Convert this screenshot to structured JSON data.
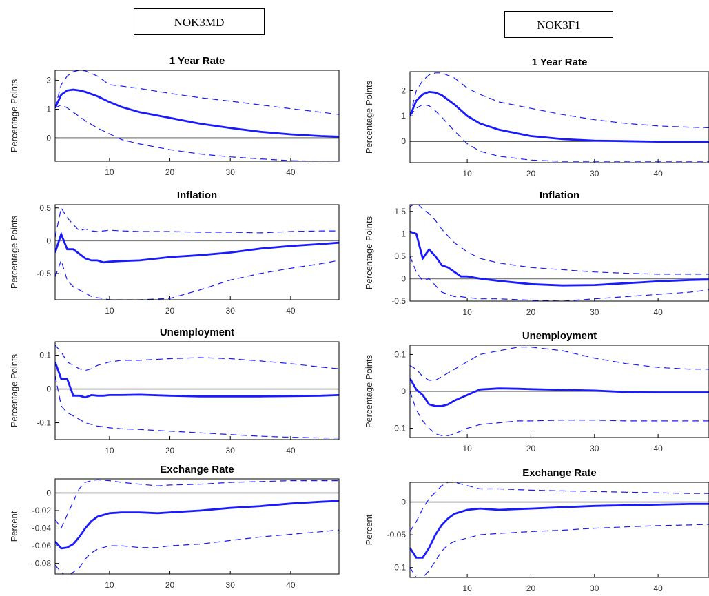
{
  "columns": {
    "left": {
      "label": "NOK3MD"
    },
    "right": {
      "label": "NOK3F1"
    }
  },
  "colors": {
    "response": "#1a1aff",
    "band": "#1a1aff",
    "zero_line": "#808080",
    "axis": "#000000"
  },
  "chart_data": [
    {
      "type": "line",
      "column": "NOK3MD",
      "title": "1 Year Rate",
      "ylabel": "Percentage Points",
      "xlabel": "",
      "xlim": [
        1,
        48
      ],
      "ylim": [
        -0.8,
        2.35
      ],
      "xticks": [
        10,
        20,
        30,
        40
      ],
      "yticks": [
        0,
        1,
        2
      ],
      "x": [
        1,
        2,
        3,
        4,
        5,
        6,
        8,
        10,
        12,
        15,
        20,
        25,
        30,
        35,
        40,
        45,
        48
      ],
      "series": [
        {
          "name": "",
          "role": "response",
          "values": [
            1.05,
            1.5,
            1.65,
            1.68,
            1.65,
            1.6,
            1.45,
            1.25,
            1.08,
            0.9,
            0.7,
            0.5,
            0.35,
            0.22,
            0.13,
            0.07,
            0.05
          ]
        },
        {
          "name": "",
          "role": "upper",
          "values": [
            1.05,
            1.85,
            2.15,
            2.3,
            2.35,
            2.33,
            2.15,
            1.85,
            1.8,
            1.72,
            1.55,
            1.4,
            1.28,
            1.15,
            1.02,
            0.9,
            0.82
          ]
        },
        {
          "name": "",
          "role": "lower",
          "values": [
            1.05,
            1.15,
            1.05,
            0.9,
            0.75,
            0.6,
            0.35,
            0.15,
            -0.05,
            -0.2,
            -0.4,
            -0.55,
            -0.65,
            -0.72,
            -0.78,
            -0.8,
            -0.8
          ]
        }
      ]
    },
    {
      "type": "line",
      "column": "NOK3MD",
      "title": "Inflation",
      "ylabel": "Percentage Points",
      "xlabel": "",
      "xlim": [
        1,
        48
      ],
      "ylim": [
        -0.9,
        0.55
      ],
      "xticks": [
        10,
        20,
        30,
        40
      ],
      "yticks": [
        -0.5,
        0,
        0.5
      ],
      "x": [
        1,
        2,
        3,
        4,
        5,
        6,
        7,
        8,
        9,
        10,
        12,
        15,
        20,
        25,
        30,
        35,
        40,
        45,
        48
      ],
      "series": [
        {
          "name": "",
          "role": "response",
          "values": [
            -0.18,
            0.1,
            -0.13,
            -0.13,
            -0.2,
            -0.27,
            -0.3,
            -0.3,
            -0.33,
            -0.32,
            -0.31,
            -0.3,
            -0.25,
            -0.22,
            -0.18,
            -0.12,
            -0.08,
            -0.05,
            -0.03
          ]
        },
        {
          "name": "",
          "role": "upper",
          "values": [
            0.05,
            0.5,
            0.35,
            0.25,
            0.15,
            0.18,
            0.15,
            0.14,
            0.15,
            0.16,
            0.15,
            0.14,
            0.14,
            0.13,
            0.13,
            0.12,
            0.14,
            0.15,
            0.15
          ]
        },
        {
          "name": "",
          "role": "lower",
          "values": [
            -0.55,
            -0.3,
            -0.6,
            -0.7,
            -0.75,
            -0.8,
            -0.85,
            -0.87,
            -0.88,
            -0.9,
            -0.9,
            -0.9,
            -0.88,
            -0.75,
            -0.6,
            -0.5,
            -0.42,
            -0.35,
            -0.3
          ]
        }
      ]
    },
    {
      "type": "line",
      "column": "NOK3MD",
      "title": "Unemployment",
      "ylabel": "Percentage Points",
      "xlabel": "",
      "xlim": [
        1,
        48
      ],
      "ylim": [
        -0.15,
        0.14
      ],
      "xticks": [
        10,
        20,
        30,
        40
      ],
      "yticks": [
        -0.1,
        0,
        0.1
      ],
      "x": [
        1,
        2,
        3,
        4,
        5,
        6,
        7,
        8,
        9,
        10,
        12,
        15,
        20,
        25,
        30,
        35,
        40,
        45,
        48
      ],
      "series": [
        {
          "name": "",
          "role": "response",
          "values": [
            0.08,
            0.03,
            0.03,
            -0.02,
            -0.02,
            -0.025,
            -0.018,
            -0.02,
            -0.02,
            -0.018,
            -0.018,
            -0.017,
            -0.02,
            -0.022,
            -0.022,
            -0.022,
            -0.021,
            -0.02,
            -0.018
          ]
        },
        {
          "name": "",
          "role": "upper",
          "values": [
            0.13,
            0.11,
            0.08,
            0.07,
            0.06,
            0.055,
            0.06,
            0.07,
            0.075,
            0.08,
            0.085,
            0.085,
            0.09,
            0.093,
            0.09,
            0.083,
            0.075,
            0.065,
            0.06
          ]
        },
        {
          "name": "",
          "role": "lower",
          "values": [
            0.04,
            -0.05,
            -0.07,
            -0.08,
            -0.09,
            -0.1,
            -0.105,
            -0.11,
            -0.112,
            -0.115,
            -0.118,
            -0.12,
            -0.125,
            -0.13,
            -0.135,
            -0.14,
            -0.143,
            -0.145,
            -0.145
          ]
        }
      ]
    },
    {
      "type": "line",
      "column": "NOK3MD",
      "title": "Exchange Rate",
      "ylabel": "Percent",
      "xlabel": "",
      "xlim": [
        1,
        48
      ],
      "ylim": [
        -0.092,
        0.016
      ],
      "xticks": [
        10,
        20,
        30,
        40
      ],
      "yticks": [
        -0.08,
        -0.06,
        -0.04,
        -0.02,
        0
      ],
      "x": [
        1,
        2,
        3,
        4,
        5,
        6,
        7,
        8,
        10,
        12,
        15,
        18,
        20,
        25,
        30,
        35,
        40,
        45,
        48
      ],
      "series": [
        {
          "name": "",
          "role": "response",
          "values": [
            -0.055,
            -0.063,
            -0.062,
            -0.058,
            -0.05,
            -0.04,
            -0.032,
            -0.027,
            -0.023,
            -0.022,
            -0.022,
            -0.023,
            -0.022,
            -0.02,
            -0.017,
            -0.015,
            -0.012,
            -0.01,
            -0.009
          ]
        },
        {
          "name": "",
          "role": "upper",
          "values": [
            -0.03,
            -0.04,
            -0.025,
            -0.01,
            0.005,
            0.012,
            0.014,
            0.015,
            0.014,
            0.012,
            0.01,
            0.008,
            0.009,
            0.01,
            0.012,
            0.013,
            0.014,
            0.014,
            0.014
          ]
        },
        {
          "name": "",
          "role": "lower",
          "values": [
            -0.082,
            -0.09,
            -0.095,
            -0.09,
            -0.085,
            -0.075,
            -0.068,
            -0.064,
            -0.06,
            -0.06,
            -0.062,
            -0.062,
            -0.06,
            -0.058,
            -0.054,
            -0.05,
            -0.047,
            -0.044,
            -0.042
          ]
        }
      ]
    },
    {
      "type": "line",
      "column": "NOK3F1",
      "title": "1 Year Rate",
      "ylabel": "Percentage Points",
      "xlabel": "",
      "xlim": [
        1,
        48
      ],
      "ylim": [
        -0.85,
        2.75
      ],
      "xticks": [
        10,
        20,
        30,
        40
      ],
      "yticks": [
        0,
        1,
        2
      ],
      "x": [
        1,
        2,
        3,
        4,
        5,
        6,
        8,
        10,
        12,
        15,
        20,
        25,
        30,
        35,
        40,
        45,
        48
      ],
      "series": [
        {
          "name": "",
          "role": "response",
          "values": [
            1.0,
            1.6,
            1.85,
            1.95,
            1.92,
            1.82,
            1.45,
            1.0,
            0.7,
            0.45,
            0.2,
            0.08,
            0.02,
            0.0,
            -0.02,
            -0.02,
            -0.03
          ]
        },
        {
          "name": "",
          "role": "upper",
          "values": [
            1.0,
            2.0,
            2.4,
            2.62,
            2.7,
            2.7,
            2.5,
            2.1,
            1.85,
            1.55,
            1.3,
            1.05,
            0.85,
            0.7,
            0.6,
            0.55,
            0.53
          ]
        },
        {
          "name": "",
          "role": "lower",
          "values": [
            1.0,
            1.3,
            1.45,
            1.4,
            1.2,
            0.95,
            0.4,
            -0.1,
            -0.4,
            -0.6,
            -0.75,
            -0.8,
            -0.8,
            -0.8,
            -0.8,
            -0.8,
            -0.8
          ]
        }
      ]
    },
    {
      "type": "line",
      "column": "NOK3F1",
      "title": "Inflation",
      "ylabel": "Percentage Points",
      "xlabel": "",
      "xlim": [
        1,
        48
      ],
      "ylim": [
        -0.5,
        1.65
      ],
      "xticks": [
        10,
        20,
        30,
        40
      ],
      "yticks": [
        -0.5,
        0,
        0.5,
        1,
        1.5
      ],
      "x": [
        1,
        2,
        3,
        4,
        5,
        6,
        7,
        8,
        9,
        10,
        12,
        15,
        20,
        25,
        30,
        35,
        40,
        45,
        48
      ],
      "series": [
        {
          "name": "",
          "role": "response",
          "values": [
            1.05,
            1.0,
            0.45,
            0.65,
            0.5,
            0.3,
            0.25,
            0.15,
            0.05,
            0.05,
            0.0,
            -0.05,
            -0.12,
            -0.15,
            -0.14,
            -0.1,
            -0.06,
            -0.03,
            -0.02
          ]
        },
        {
          "name": "",
          "role": "upper",
          "values": [
            1.6,
            1.7,
            1.55,
            1.45,
            1.3,
            1.1,
            0.95,
            0.8,
            0.7,
            0.6,
            0.45,
            0.35,
            0.25,
            0.2,
            0.15,
            0.12,
            0.1,
            0.1,
            0.1
          ]
        },
        {
          "name": "",
          "role": "lower",
          "values": [
            0.5,
            0.15,
            -0.05,
            0.0,
            -0.15,
            -0.3,
            -0.35,
            -0.4,
            -0.4,
            -0.42,
            -0.45,
            -0.45,
            -0.48,
            -0.5,
            -0.45,
            -0.4,
            -0.35,
            -0.3,
            -0.25
          ]
        }
      ]
    },
    {
      "type": "line",
      "column": "NOK3F1",
      "title": "Unemployment",
      "ylabel": "Percentage Points",
      "xlabel": "",
      "xlim": [
        1,
        48
      ],
      "ylim": [
        -0.125,
        0.125
      ],
      "xticks": [
        10,
        20,
        30,
        40
      ],
      "yticks": [
        -0.1,
        0,
        0.1
      ],
      "x": [
        1,
        2,
        3,
        4,
        5,
        6,
        7,
        8,
        10,
        12,
        15,
        18,
        20,
        25,
        30,
        35,
        40,
        45,
        48
      ],
      "series": [
        {
          "name": "",
          "role": "response",
          "values": [
            0.035,
            0.005,
            -0.01,
            -0.035,
            -0.04,
            -0.04,
            -0.035,
            -0.025,
            -0.01,
            0.005,
            0.008,
            0.007,
            0.006,
            0.004,
            0.002,
            -0.002,
            -0.003,
            -0.003,
            -0.003
          ]
        },
        {
          "name": "",
          "role": "upper",
          "values": [
            0.07,
            0.06,
            0.04,
            0.03,
            0.03,
            0.04,
            0.05,
            0.06,
            0.08,
            0.1,
            0.11,
            0.12,
            0.12,
            0.11,
            0.09,
            0.075,
            0.065,
            0.06,
            0.06
          ]
        },
        {
          "name": "",
          "role": "lower",
          "values": [
            0.0,
            -0.05,
            -0.08,
            -0.1,
            -0.115,
            -0.12,
            -0.12,
            -0.115,
            -0.1,
            -0.09,
            -0.085,
            -0.08,
            -0.08,
            -0.078,
            -0.078,
            -0.08,
            -0.08,
            -0.08,
            -0.08
          ]
        }
      ]
    },
    {
      "type": "line",
      "column": "NOK3F1",
      "title": "Exchange Rate",
      "ylabel": "Percent",
      "xlabel": "",
      "xlim": [
        1,
        48
      ],
      "ylim": [
        -0.115,
        0.03
      ],
      "xticks": [
        10,
        20,
        30,
        40
      ],
      "yticks": [
        -0.1,
        -0.05,
        0
      ],
      "x": [
        1,
        2,
        3,
        4,
        5,
        6,
        7,
        8,
        10,
        12,
        15,
        20,
        25,
        30,
        35,
        40,
        45,
        48
      ],
      "series": [
        {
          "name": "",
          "role": "response",
          "values": [
            -0.07,
            -0.085,
            -0.085,
            -0.07,
            -0.05,
            -0.035,
            -0.025,
            -0.018,
            -0.012,
            -0.01,
            -0.012,
            -0.01,
            -0.008,
            -0.006,
            -0.005,
            -0.004,
            -0.003,
            -0.003
          ]
        },
        {
          "name": "",
          "role": "upper",
          "values": [
            -0.045,
            -0.03,
            -0.01,
            0.005,
            0.015,
            0.025,
            0.03,
            0.03,
            0.025,
            0.02,
            0.02,
            0.018,
            0.017,
            0.016,
            0.015,
            0.014,
            0.013,
            0.013
          ]
        },
        {
          "name": "",
          "role": "lower",
          "values": [
            -0.1,
            -0.115,
            -0.115,
            -0.105,
            -0.09,
            -0.075,
            -0.065,
            -0.06,
            -0.055,
            -0.05,
            -0.048,
            -0.045,
            -0.043,
            -0.04,
            -0.038,
            -0.036,
            -0.035,
            -0.034
          ]
        }
      ]
    }
  ]
}
